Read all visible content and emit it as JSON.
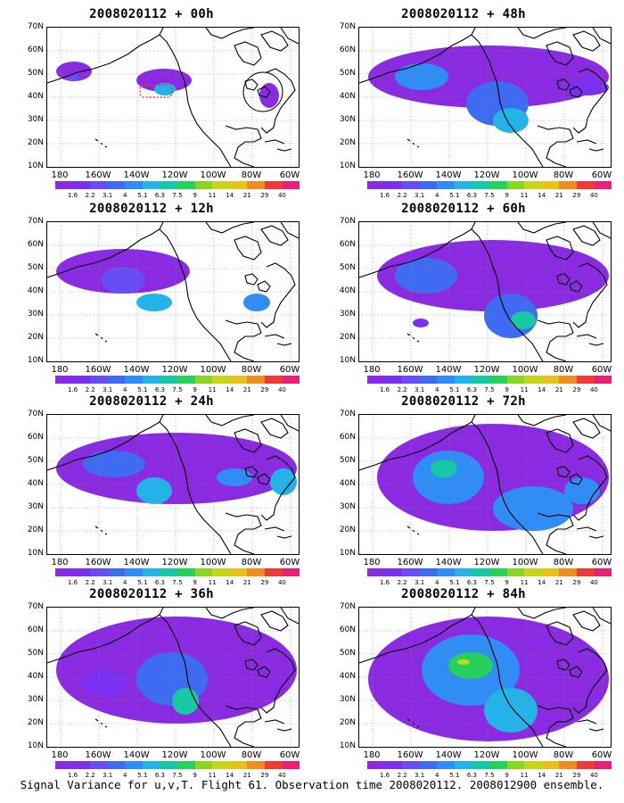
{
  "panels": [
    {
      "title": "2008020112 + 00h"
    },
    {
      "title": "2008020112 + 48h"
    },
    {
      "title": "2008020112 + 12h"
    },
    {
      "title": "2008020112 + 60h"
    },
    {
      "title": "2008020112 + 24h"
    },
    {
      "title": "2008020112 + 72h"
    },
    {
      "title": "2008020112 + 36h"
    },
    {
      "title": "2008020112 + 84h"
    }
  ],
  "y_axis_labels": [
    "70N",
    "60N",
    "50N",
    "40N",
    "30N",
    "20N",
    "10N"
  ],
  "x_axis_labels": [
    "180",
    "160W",
    "140W",
    "120W",
    "100W",
    "80W",
    "60W"
  ],
  "colorbar": {
    "labels": [
      "1.6",
      "2.2",
      "3.1",
      "4",
      "5.1",
      "6.3",
      "7.5",
      "9",
      "11",
      "14",
      "21",
      "29",
      "40"
    ],
    "colors": [
      "#8a2be2",
      "#7b2ff0",
      "#6a4cf5",
      "#3f6af2",
      "#2f8df5",
      "#23b3e8",
      "#14c9a3",
      "#25d15a",
      "#88d620",
      "#c6d61b",
      "#e6c21b",
      "#f08c20",
      "#ef3a3a",
      "#e8207a"
    ]
  },
  "caption": "Signal Variance for u,v,T. Flight 61. Observation time 2008020112. 2008012900 ensemble."
}
